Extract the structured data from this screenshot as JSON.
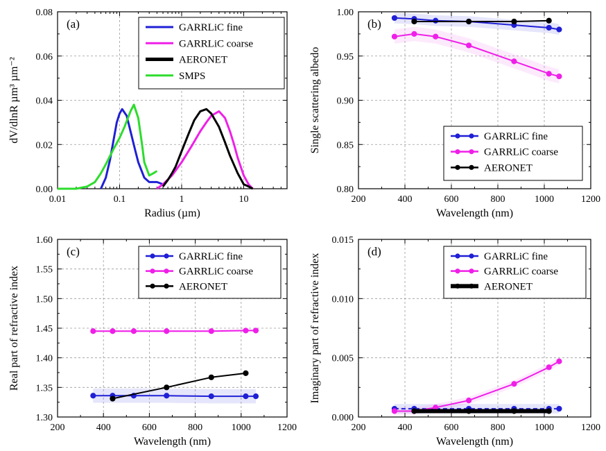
{
  "chart_data": [
    {
      "panel": "(a)",
      "type": "line",
      "xlabel": "Radius  (µm)",
      "ylabel": "dV/dlnR µm³ µm⁻²",
      "x_scale": "log",
      "xlim": [
        0.01,
        50
      ],
      "ylim": [
        0,
        0.08
      ],
      "x_ticks": [
        "0.01",
        "0.1",
        "1",
        "10"
      ],
      "y_ticks": [
        "0.00",
        "0.02",
        "0.04",
        "0.06",
        "0.08"
      ],
      "grid": true,
      "legend_position": "top-right",
      "series": [
        {
          "name": "GARRLiC fine",
          "color": "#1f1fd6",
          "x": [
            0.05,
            0.06,
            0.07,
            0.08,
            0.09,
            0.1,
            0.11,
            0.13,
            0.15,
            0.18,
            0.2,
            0.25,
            0.3,
            0.4,
            0.5
          ],
          "y": [
            0.0,
            0.005,
            0.013,
            0.022,
            0.03,
            0.034,
            0.036,
            0.033,
            0.026,
            0.017,
            0.012,
            0.005,
            0.003,
            0.003,
            0.002
          ]
        },
        {
          "name": "GARRLiC coarse",
          "color": "#ef1fe8",
          "x": [
            0.4,
            0.5,
            0.7,
            1,
            1.5,
            2,
            2.5,
            3,
            4,
            5,
            6,
            7,
            8,
            10,
            12,
            14
          ],
          "y": [
            0.0,
            0.002,
            0.006,
            0.012,
            0.02,
            0.026,
            0.03,
            0.033,
            0.035,
            0.032,
            0.026,
            0.02,
            0.014,
            0.006,
            0.002,
            0.0
          ]
        },
        {
          "name": "AERONET",
          "color": "#000000",
          "x": [
            0.5,
            0.6,
            0.7,
            0.8,
            1,
            1.3,
            1.6,
            2,
            2.5,
            3,
            4,
            5,
            6,
            8,
            10,
            12,
            14
          ],
          "y": [
            0.001,
            0.004,
            0.007,
            0.01,
            0.017,
            0.025,
            0.031,
            0.035,
            0.036,
            0.034,
            0.028,
            0.021,
            0.015,
            0.007,
            0.002,
            0.001,
            0.0
          ]
        },
        {
          "name": "SMPS",
          "color": "#2ddc2d",
          "x": [
            0.01,
            0.02,
            0.03,
            0.04,
            0.05,
            0.06,
            0.08,
            0.1,
            0.12,
            0.15,
            0.17,
            0.2,
            0.23,
            0.25,
            0.3,
            0.35,
            0.4
          ],
          "y": [
            0.0,
            0.0,
            0.001,
            0.003,
            0.007,
            0.011,
            0.018,
            0.023,
            0.028,
            0.035,
            0.038,
            0.032,
            0.02,
            0.012,
            0.006,
            0.007,
            0.008
          ]
        }
      ]
    },
    {
      "panel": "(b)",
      "type": "line",
      "xlabel": "Wavelength  (nm)",
      "ylabel": "Single scattering albedo",
      "xlim": [
        200,
        1200
      ],
      "ylim": [
        0.8,
        1.0
      ],
      "x_ticks": [
        "200",
        "400",
        "600",
        "800",
        "1000",
        "1200"
      ],
      "y_ticks": [
        "0.80",
        "0.85",
        "0.90",
        "0.95",
        "1.00"
      ],
      "grid": true,
      "legend_position": "bottom-right",
      "series": [
        {
          "name": "GARRLiC fine",
          "color": "#1f1fd6",
          "x": [
            355,
            440,
            532,
            675,
            870,
            1020,
            1064
          ],
          "y": [
            0.993,
            0.992,
            0.99,
            0.989,
            0.985,
            0.982,
            0.98
          ]
        },
        {
          "name": "GARRLiC coarse",
          "color": "#ef1fe8",
          "x": [
            355,
            440,
            532,
            675,
            870,
            1020,
            1064
          ],
          "y": [
            0.972,
            0.975,
            0.972,
            0.962,
            0.944,
            0.93,
            0.927
          ]
        },
        {
          "name": "AERONET",
          "color": "#000000",
          "x": [
            440,
            675,
            870,
            1020
          ],
          "y": [
            0.989,
            0.989,
            0.989,
            0.99
          ]
        }
      ]
    },
    {
      "panel": "(c)",
      "type": "line",
      "xlabel": "Wavelength  (nm)",
      "ylabel": "Real part of refractive index",
      "xlim": [
        200,
        1200
      ],
      "ylim": [
        1.3,
        1.6
      ],
      "x_ticks": [
        "200",
        "400",
        "600",
        "800",
        "1000",
        "1200"
      ],
      "y_ticks": [
        "1.30",
        "1.35",
        "1.40",
        "1.45",
        "1.50",
        "1.55",
        "1.60"
      ],
      "grid": true,
      "legend_position": "top-right",
      "series": [
        {
          "name": "GARRLiC fine",
          "color": "#1f1fd6",
          "x": [
            355,
            440,
            532,
            675,
            870,
            1020,
            1064
          ],
          "y": [
            1.336,
            1.336,
            1.336,
            1.336,
            1.335,
            1.335,
            1.335
          ]
        },
        {
          "name": "GARRLiC coarse",
          "color": "#ef1fe8",
          "x": [
            355,
            440,
            532,
            675,
            870,
            1020,
            1064
          ],
          "y": [
            1.445,
            1.445,
            1.445,
            1.445,
            1.445,
            1.446,
            1.446
          ]
        },
        {
          "name": "AERONET",
          "color": "#000000",
          "x": [
            440,
            675,
            870,
            1020
          ],
          "y": [
            1.331,
            1.35,
            1.367,
            1.374
          ]
        }
      ]
    },
    {
      "panel": "(d)",
      "type": "line",
      "xlabel": "Wavelength  (nm)",
      "ylabel": "Imaginary part of refractive index",
      "xlim": [
        200,
        1200
      ],
      "ylim": [
        0,
        0.015
      ],
      "x_ticks": [
        "200",
        "400",
        "600",
        "800",
        "1000",
        "1200"
      ],
      "y_ticks": [
        "0.000",
        "0.005",
        "0.010",
        "0.015"
      ],
      "grid": true,
      "legend_position": "top-right",
      "series": [
        {
          "name": "GARRLiC fine",
          "color": "#1f1fd6",
          "x": [
            355,
            440,
            532,
            675,
            870,
            1020,
            1064
          ],
          "y": [
            0.0007,
            0.0007,
            0.0007,
            0.0007,
            0.0007,
            0.0007,
            0.0007
          ]
        },
        {
          "name": "GARRLiC coarse",
          "color": "#ef1fe8",
          "x": [
            355,
            440,
            532,
            675,
            870,
            1020,
            1064
          ],
          "y": [
            0.0005,
            0.0005,
            0.0008,
            0.0014,
            0.0028,
            0.0042,
            0.0047
          ]
        },
        {
          "name": "AERONET",
          "color": "#000000",
          "x": [
            440,
            675,
            870,
            1020
          ],
          "y": [
            0.0005,
            0.0005,
            0.0005,
            0.0005
          ]
        }
      ]
    }
  ]
}
